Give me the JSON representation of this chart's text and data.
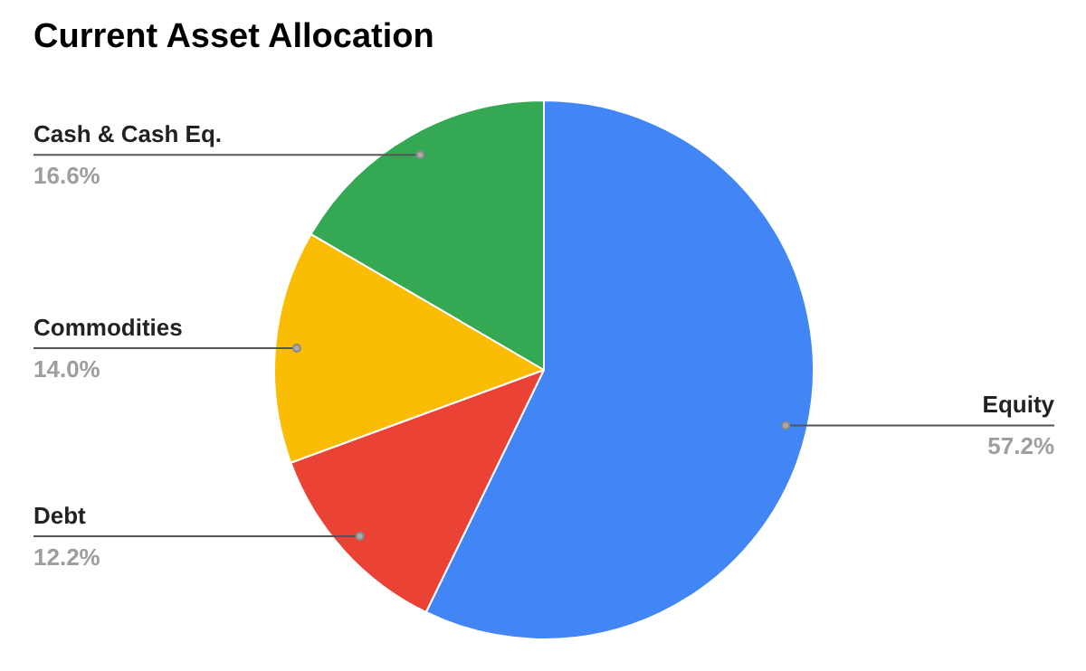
{
  "chart_data": {
    "type": "pie",
    "title": "Current Asset Allocation",
    "categories": [
      "Equity",
      "Debt",
      "Commodities",
      "Cash & Cash Eq."
    ],
    "values": [
      57.2,
      12.2,
      14.0,
      16.6
    ],
    "colors": [
      "#4285f4",
      "#ea4335",
      "#fbbc04",
      "#34a853"
    ],
    "value_labels": [
      "57.2%",
      "12.2%",
      "14.0%",
      "16.6%"
    ]
  }
}
